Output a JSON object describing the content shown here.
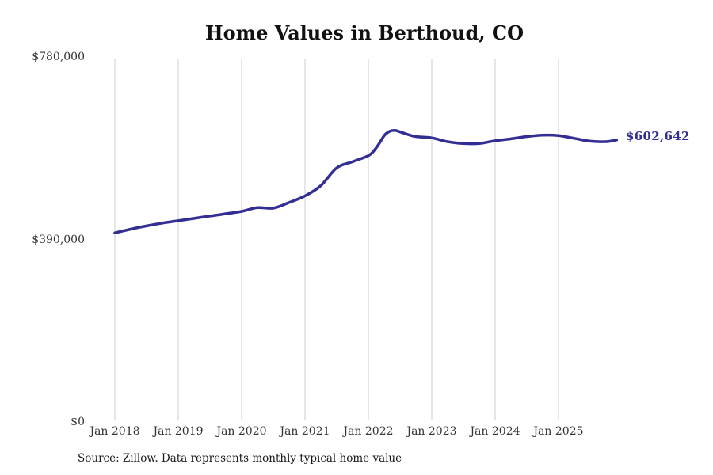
{
  "header": {
    "title": "Home Values in Berthoud, CO"
  },
  "footer": {
    "source": "Source: Zillow. Data represents monthly typical home value"
  },
  "colors": {
    "background": "#ffffff",
    "line": "#332E93",
    "grid": "#cccccc",
    "axis_text": "#333333",
    "title_text": "#111111",
    "end_label": "#332E93"
  },
  "chart_data": {
    "type": "line",
    "title": "Home Values in Berthoud, CO",
    "xlabel": "",
    "ylabel": "",
    "ylim": [
      0,
      780000
    ],
    "grid": "vertical-only",
    "legend": "none",
    "end_label": "$602,642",
    "end_value": 602642,
    "y_ticks": [
      {
        "label": "$780,000",
        "value": 780000
      },
      {
        "label": "$390,000",
        "value": 390000
      },
      {
        "label": "$0",
        "value": 0
      }
    ],
    "x_ticks": [
      {
        "label": "Jan 2018",
        "month": "2018-01"
      },
      {
        "label": "Jan 2019",
        "month": "2019-01"
      },
      {
        "label": "Jan 2020",
        "month": "2020-01"
      },
      {
        "label": "Jan 2021",
        "month": "2021-01"
      },
      {
        "label": "Jan 2022",
        "month": "2022-01"
      },
      {
        "label": "Jan 2023",
        "month": "2023-01"
      },
      {
        "label": "Jan 2024",
        "month": "2024-01"
      },
      {
        "label": "Jan 2025",
        "month": "2025-01"
      }
    ],
    "series": [
      {
        "name": "Monthly typical home value",
        "color": "#332E93",
        "points": [
          [
            "2018-01",
            404000
          ],
          [
            "2018-04",
            412000
          ],
          [
            "2018-07",
            419000
          ],
          [
            "2018-10",
            425000
          ],
          [
            "2019-01",
            430000
          ],
          [
            "2019-04",
            435000
          ],
          [
            "2019-07",
            440000
          ],
          [
            "2019-10",
            445000
          ],
          [
            "2020-01",
            450000
          ],
          [
            "2020-04",
            458000
          ],
          [
            "2020-07",
            457000
          ],
          [
            "2020-10",
            469000
          ],
          [
            "2021-01",
            483000
          ],
          [
            "2021-04",
            505000
          ],
          [
            "2021-07",
            543000
          ],
          [
            "2021-10",
            556000
          ],
          [
            "2022-01",
            569000
          ],
          [
            "2022-02",
            579000
          ],
          [
            "2022-03",
            594000
          ],
          [
            "2022-04",
            612000
          ],
          [
            "2022-05",
            621000
          ],
          [
            "2022-06",
            623000
          ],
          [
            "2022-07",
            620000
          ],
          [
            "2022-08",
            616000
          ],
          [
            "2022-10",
            610000
          ],
          [
            "2023-01",
            607000
          ],
          [
            "2023-04",
            599000
          ],
          [
            "2023-07",
            595000
          ],
          [
            "2023-10",
            595000
          ],
          [
            "2024-01",
            601000
          ],
          [
            "2024-04",
            605000
          ],
          [
            "2024-07",
            610000
          ],
          [
            "2024-10",
            613000
          ],
          [
            "2025-01",
            612000
          ],
          [
            "2025-04",
            606000
          ],
          [
            "2025-07",
            600000
          ],
          [
            "2025-10",
            599000
          ],
          [
            "2025-12",
            602642
          ]
        ]
      }
    ]
  }
}
